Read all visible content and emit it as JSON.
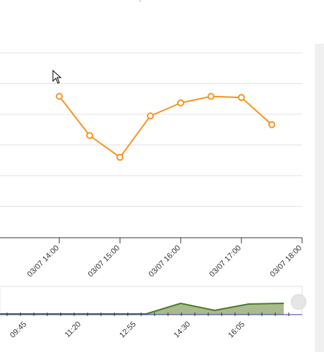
{
  "chart_data": {
    "type": "line",
    "x": [
      "03/07 14:00",
      "03/07 14:30",
      "03/07 15:00",
      "03/07 15:30",
      "03/07 16:00",
      "03/07 16:30",
      "03/07 17:00",
      "03/07 17:30"
    ],
    "series": [
      {
        "values": [
          4,
          2.2,
          1.2,
          3.1,
          3.7,
          4,
          3.95,
          2.7
        ],
        "color": "#f7931e"
      }
    ],
    "xticks": [
      "03/07 14:00",
      "03/07 15:00",
      "03/07 16:00",
      "03/07 17:00",
      "03/07 18:00"
    ],
    "ylim": [
      -2.5,
      6
    ],
    "grid": true
  },
  "navigator": {
    "labels": [
      "09:45",
      "11:20",
      "12:55",
      "14:30",
      "16:05"
    ],
    "line_color": "#4a7a2a",
    "fill_color": "#9aaf7a"
  },
  "colors": {
    "series_line": "#f7931e",
    "grid": "#e0e0e0",
    "axis": "#333333"
  }
}
